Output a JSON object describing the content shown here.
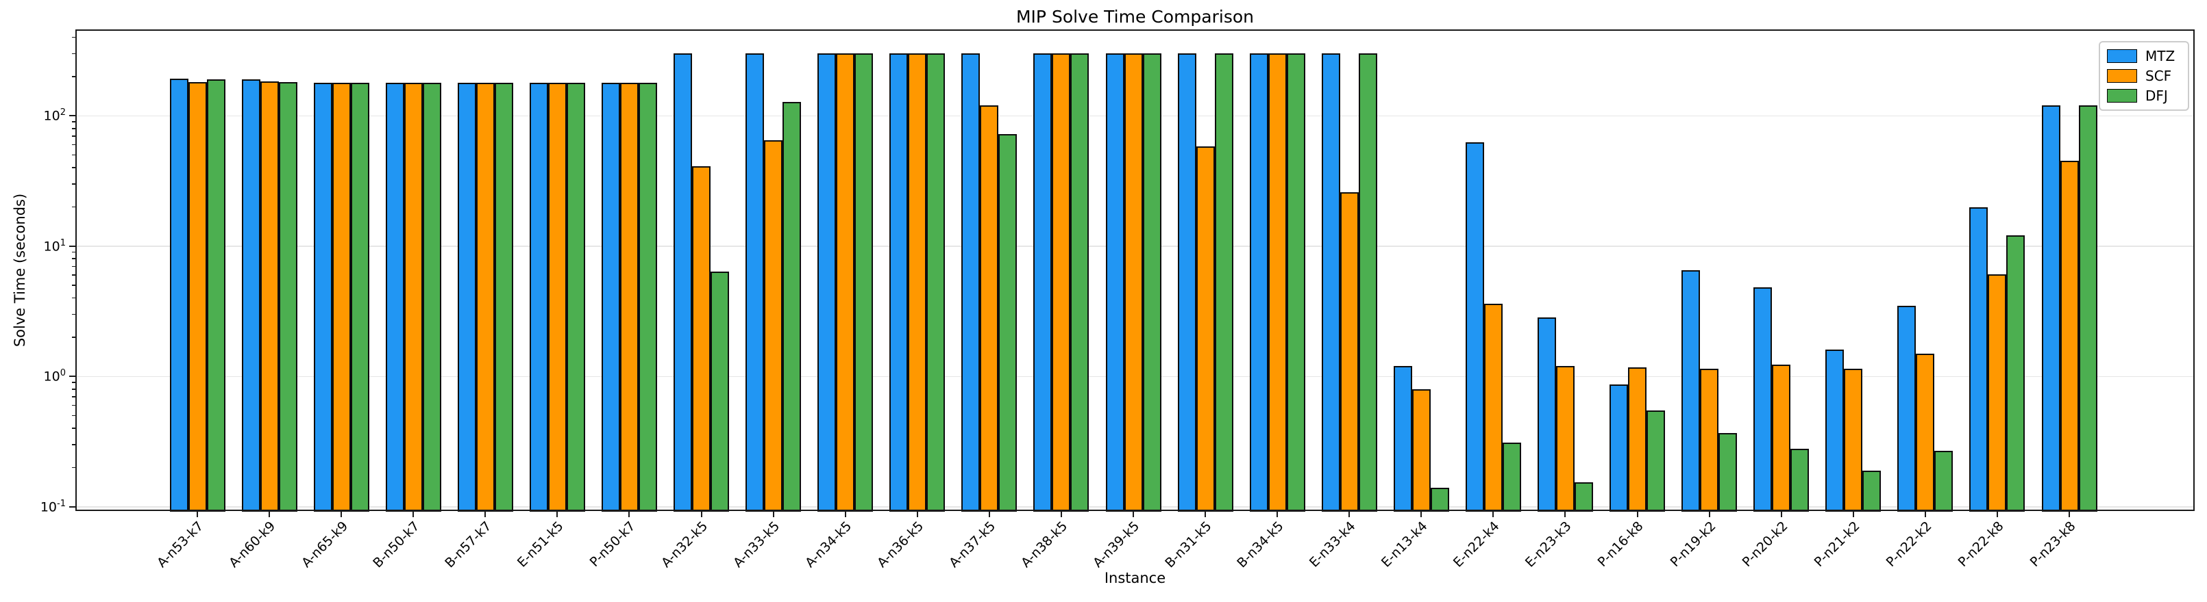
{
  "chart_data": {
    "type": "bar",
    "title": "MIP Solve Time Comparison",
    "xlabel": "Instance",
    "ylabel": "Solve Time (seconds)",
    "y_axis": {
      "scale": "log",
      "major_ticks": [
        0.1,
        1,
        10,
        100
      ],
      "tick_label_exponents": [
        -1,
        0,
        1,
        2
      ],
      "range": [
        0.0915,
        460
      ],
      "grid": "horizontal-major"
    },
    "legend_position": "upper right",
    "categories": [
      "A-n53-k7",
      "A-n60-k9",
      "A-n65-k9",
      "B-n50-k7",
      "B-n57-k7",
      "E-n51-k5",
      "P-n50-k7",
      "A-n32-k5",
      "A-n33-k5",
      "A-n34-k5",
      "A-n36-k5",
      "A-n37-k5",
      "A-n38-k5",
      "A-n39-k5",
      "B-n31-k5",
      "B-n34-k5",
      "E-n33-k4",
      "E-n13-k4",
      "E-n22-k4",
      "E-n23-k3",
      "P-n16-k8",
      "P-n19-k2",
      "P-n20-k2",
      "P-n21-k2",
      "P-n22-k2",
      "P-n22-k8",
      "P-n23-k8"
    ],
    "series": [
      {
        "name": "MTZ",
        "color": "#2196F3",
        "values": [
          193,
          190,
          180,
          180,
          180,
          180,
          180,
          300,
          300,
          300,
          300,
          300,
          300,
          300,
          300,
          300,
          300,
          1.2,
          63,
          2.85,
          0.87,
          6.5,
          4.85,
          1.6,
          3.5,
          19.8,
          121
        ]
      },
      {
        "name": "SCF",
        "color": "#FF9800",
        "values": [
          181,
          184,
          180,
          180,
          180,
          180,
          180,
          41,
          65,
          300,
          300,
          121,
          300,
          300,
          58,
          300,
          26,
          0.8,
          3.6,
          1.2,
          1.18,
          1.15,
          1.23,
          1.14,
          1.5,
          6.1,
          45
        ]
      },
      {
        "name": "DFJ",
        "color": "#4CAF50",
        "values": [
          190,
          181,
          180,
          180,
          180,
          180,
          180,
          6.4,
          128,
          300,
          300,
          72,
          300,
          300,
          300,
          300,
          300,
          0.14,
          0.31,
          0.155,
          0.55,
          0.37,
          0.28,
          0.19,
          0.27,
          12.1,
          120
        ]
      }
    ],
    "bar_edge_color": "#000000",
    "grid_color": "#e6e6e6",
    "spine_color": "#1a1a1a",
    "background_color": "#ffffff"
  }
}
